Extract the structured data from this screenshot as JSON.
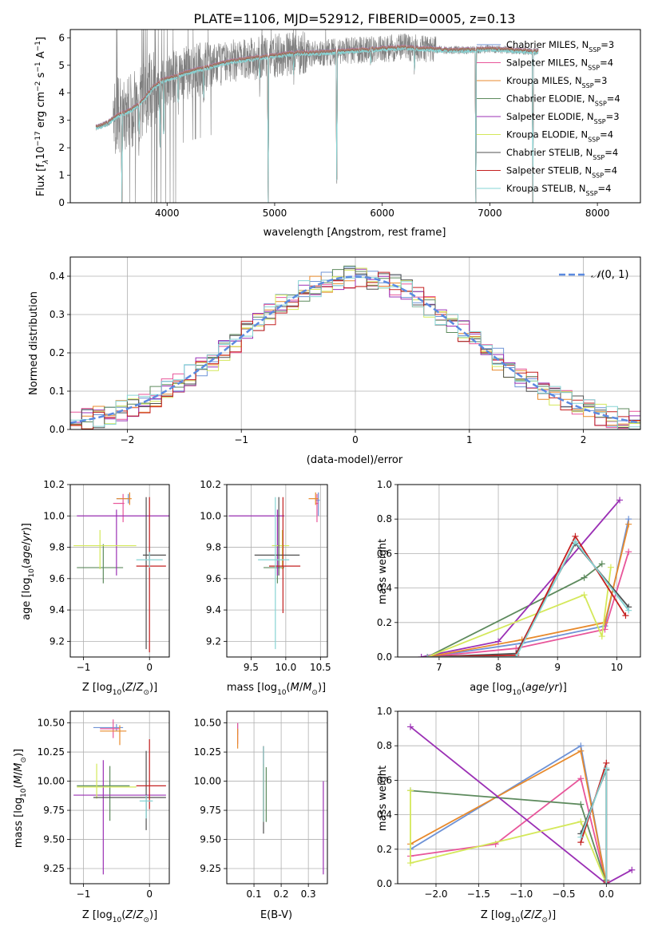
{
  "figure_title": "PLATE=1106, MJD=52912, FIBERID=0005, z=0.13",
  "legend_models": [
    {
      "label": "Chabrier MILES, N$_{SSP}$=3",
      "color": "#6f93d6"
    },
    {
      "label": "Salpeter MILES, N$_{SSP}$=4",
      "color": "#e8559a"
    },
    {
      "label": "Kroupa MILES, N$_{SSP}$=3",
      "color": "#e88a2c"
    },
    {
      "label": "Chabrier ELODIE, N$_{SSP}$=4",
      "color": "#5d8a5d"
    },
    {
      "label": "Salpeter ELODIE, N$_{SSP}$=3",
      "color": "#9b30b5"
    },
    {
      "label": "Kroupa ELODIE, N$_{SSP}$=4",
      "color": "#d4e85a"
    },
    {
      "label": "Chabrier STELIB, N$_{SSP}$=4",
      "color": "#505050"
    },
    {
      "label": "Salpeter STELIB, N$_{SSP}$=4",
      "color": "#c42020"
    },
    {
      "label": "Kroupa STELIB, N$_{SSP}$=4",
      "color": "#86d4d4"
    }
  ],
  "chart_data": [
    {
      "type": "line",
      "id": "spectrum",
      "xlabel": "wavelength [Angstrom, rest frame]",
      "ylabel": "Flux [f_λ10^{-17} erg cm^{-2} s^{-1} A^{-1}]",
      "xlim": [
        3100,
        8400
      ],
      "ylim": [
        0,
        6.3
      ],
      "xticks": [
        4000,
        5000,
        6000,
        7000,
        8000
      ],
      "yticks": [
        0,
        1,
        2,
        3,
        4,
        5,
        6
      ],
      "data_color": "#808080",
      "model_color": "#86d4d4",
      "grid": false,
      "legend_location": "upper right",
      "continuum_knots": [
        [
          3350,
          2.75
        ],
        [
          3450,
          2.9
        ],
        [
          3550,
          3.2
        ],
        [
          3650,
          3.35
        ],
        [
          3750,
          3.6
        ],
        [
          3850,
          4.1
        ],
        [
          3950,
          4.45
        ],
        [
          4050,
          4.55
        ],
        [
          4200,
          4.75
        ],
        [
          4400,
          4.95
        ],
        [
          4600,
          5.15
        ],
        [
          4800,
          5.25
        ],
        [
          5000,
          5.35
        ],
        [
          5200,
          5.45
        ],
        [
          5400,
          5.45
        ],
        [
          5600,
          5.5
        ],
        [
          5800,
          5.55
        ],
        [
          6000,
          5.6
        ],
        [
          6200,
          5.65
        ],
        [
          6400,
          5.6
        ],
        [
          6600,
          5.55
        ],
        [
          6800,
          5.55
        ],
        [
          7000,
          5.6
        ],
        [
          7200,
          5.55
        ],
        [
          7400,
          5.5
        ]
      ],
      "absorption_features": [
        [
          3580,
          0.0
        ],
        [
          3740,
          2.5
        ],
        [
          3934,
          2.0
        ],
        [
          3969,
          2.2
        ],
        [
          4102,
          3.7
        ],
        [
          4340,
          3.9
        ],
        [
          4861,
          4.4
        ],
        [
          4940,
          0.0
        ],
        [
          5176,
          4.7
        ],
        [
          5577,
          0.0
        ],
        [
          5893,
          5.0
        ],
        [
          6300,
          4.9
        ],
        [
          6870,
          0.0
        ],
        [
          7400,
          0.0
        ]
      ]
    },
    {
      "type": "line",
      "id": "residual-distribution",
      "xlabel": "(data-model)/error",
      "ylabel": "Normed distribution",
      "xlim": [
        -2.5,
        2.5
      ],
      "ylim": [
        0,
        0.45
      ],
      "xticks": [
        -2,
        -1,
        0,
        1,
        2
      ],
      "yticks": [
        0.0,
        0.1,
        0.2,
        0.3,
        0.4
      ],
      "grid": true,
      "reference_curve": {
        "name": "N(0,1)",
        "color": "#5b8ae0",
        "style": "dashed"
      },
      "histogram_bin_width": 0.1
    },
    {
      "type": "scatter",
      "id": "age-vs-Z",
      "xlabel": "Z [log10(Z/Z☉)]",
      "ylabel": "age [log10(age/yr)]",
      "xlim": [
        -1.2,
        0.3
      ],
      "ylim": [
        9.1,
        10.2
      ],
      "xticks": [
        -1,
        0
      ],
      "yticks": [
        9.2,
        9.4,
        9.6,
        9.8,
        10.0,
        10.2
      ],
      "grid": true,
      "points": [
        {
          "model": 0,
          "x": -0.32,
          "y": 10.11,
          "xerr": [
            0.18,
            0.02
          ],
          "yerr": [
            0.03,
            0.03
          ]
        },
        {
          "model": 1,
          "x": -0.4,
          "y": 10.08,
          "xerr": [
            0.15,
            0.02
          ],
          "yerr": [
            0.12,
            0.06
          ]
        },
        {
          "model": 2,
          "x": -0.3,
          "y": 10.11,
          "xerr": [
            0.2,
            0.03
          ],
          "yerr": [
            0.04,
            0.04
          ]
        },
        {
          "model": 3,
          "x": -0.7,
          "y": 9.67,
          "xerr": [
            0.4,
            0.3
          ],
          "yerr": [
            0.1,
            0.15
          ]
        },
        {
          "model": 4,
          "x": -0.5,
          "y": 10.0,
          "xerr": [
            0.6,
            0.8
          ],
          "yerr": [
            0.38,
            0.04
          ]
        },
        {
          "model": 5,
          "x": -0.75,
          "y": 9.81,
          "xerr": [
            0.4,
            0.55
          ],
          "yerr": [
            0.15,
            0.1
          ]
        },
        {
          "model": 6,
          "x": -0.05,
          "y": 9.75,
          "xerr": [
            0.05,
            0.3
          ],
          "yerr": [
            0.6,
            0.37
          ]
        },
        {
          "model": 7,
          "x": 0.0,
          "y": 9.68,
          "xerr": [
            0.2,
            0.25
          ],
          "yerr": [
            0.55,
            0.44
          ]
        },
        {
          "model": 8,
          "x": 0.0,
          "y": 9.72,
          "xerr": [
            0.2,
            0.2
          ],
          "yerr": [
            0.05,
            0.05
          ]
        }
      ]
    },
    {
      "type": "scatter",
      "id": "age-vs-mass",
      "xlabel": "mass [log10(M/M☉)]",
      "ylabel": "",
      "xlim": [
        9.15,
        10.6
      ],
      "ylim": [
        9.1,
        10.2
      ],
      "xticks": [
        9.5,
        10.0,
        10.5
      ],
      "yticks": [
        9.2,
        9.4,
        9.6,
        9.8,
        10.0,
        10.2
      ],
      "grid": true,
      "points": [
        {
          "model": 0,
          "x": 10.47,
          "y": 10.1,
          "xerr": [
            0.04,
            0.02
          ],
          "yerr": [
            0.1,
            0.05
          ]
        },
        {
          "model": 1,
          "x": 10.45,
          "y": 10.08,
          "xerr": [
            0.02,
            0.02
          ],
          "yerr": [
            0.12,
            0.06
          ]
        },
        {
          "model": 2,
          "x": 10.43,
          "y": 10.11,
          "xerr": [
            0.1,
            0.04
          ],
          "yerr": [
            0.04,
            0.04
          ]
        },
        {
          "model": 3,
          "x": 9.88,
          "y": 9.67,
          "xerr": [
            0.2,
            0.1
          ],
          "yerr": [
            0.1,
            0.15
          ]
        },
        {
          "model": 4,
          "x": 9.88,
          "y": 10.0,
          "xerr": [
            0.7,
            0.1
          ],
          "yerr": [
            0.38,
            0.04
          ]
        },
        {
          "model": 5,
          "x": 9.95,
          "y": 9.81,
          "xerr": [
            0.15,
            0.1
          ],
          "yerr": [
            0.15,
            0.1
          ]
        },
        {
          "model": 6,
          "x": 9.9,
          "y": 9.75,
          "xerr": [
            0.35,
            0.3
          ],
          "yerr": [
            0.13,
            0.37
          ]
        },
        {
          "model": 7,
          "x": 9.96,
          "y": 9.68,
          "xerr": [
            0.2,
            0.25
          ],
          "yerr": [
            0.3,
            0.44
          ]
        },
        {
          "model": 8,
          "x": 9.85,
          "y": 9.72,
          "xerr": [
            0.25,
            0.2
          ],
          "yerr": [
            0.57,
            0.4
          ]
        }
      ]
    },
    {
      "type": "line",
      "id": "mass-weight-vs-age",
      "xlabel": "age [log10(age/yr)]",
      "ylabel": "mass weight",
      "xlim": [
        6.3,
        10.4
      ],
      "ylim": [
        0,
        1.0
      ],
      "xticks": [
        7,
        8,
        9,
        10
      ],
      "yticks": [
        0.0,
        0.2,
        0.4,
        0.6,
        0.8,
        1.0
      ],
      "grid": true,
      "series": [
        {
          "model": 0,
          "x": [
            6.8,
            8.4,
            9.8,
            10.2
          ],
          "y": [
            0.0,
            0.08,
            0.18,
            0.8
          ]
        },
        {
          "model": 1,
          "x": [
            6.8,
            8.3,
            9.8,
            10.2
          ],
          "y": [
            0.0,
            0.05,
            0.16,
            0.61
          ]
        },
        {
          "model": 2,
          "x": [
            6.8,
            8.4,
            9.8,
            10.2
          ],
          "y": [
            0.0,
            0.1,
            0.2,
            0.77
          ]
        },
        {
          "model": 3,
          "x": [
            6.8,
            9.45,
            9.75
          ],
          "y": [
            0.0,
            0.46,
            0.54
          ]
        },
        {
          "model": 4,
          "x": [
            6.7,
            8.0,
            10.05
          ],
          "y": [
            0.0,
            0.09,
            0.91
          ]
        },
        {
          "model": 5,
          "x": [
            6.8,
            9.45,
            9.75,
            9.9
          ],
          "y": [
            0.0,
            0.36,
            0.12,
            0.52
          ]
        },
        {
          "model": 6,
          "x": [
            6.8,
            8.3,
            9.3,
            10.2
          ],
          "y": [
            0.0,
            0.02,
            0.66,
            0.29
          ]
        },
        {
          "model": 7,
          "x": [
            6.8,
            8.3,
            9.3,
            10.15
          ],
          "y": [
            0.0,
            0.01,
            0.7,
            0.24
          ]
        },
        {
          "model": 8,
          "x": [
            6.8,
            8.3,
            9.3,
            10.2
          ],
          "y": [
            0.0,
            0.0,
            0.67,
            0.27
          ]
        }
      ]
    },
    {
      "type": "scatter",
      "id": "mass-vs-Z",
      "xlabel": "Z [log10(Z/Z☉)]",
      "ylabel": "mass [log10(M/M☉)]",
      "xlim": [
        -1.2,
        0.3
      ],
      "ylim": [
        9.12,
        10.6
      ],
      "xticks": [
        -1,
        0
      ],
      "yticks": [
        9.25,
        9.5,
        9.75,
        10.0,
        10.25,
        10.5
      ],
      "grid": true,
      "points": [
        {
          "model": 0,
          "x": -0.5,
          "y": 10.46,
          "xerr": [
            0.35,
            0.1
          ],
          "yerr": [
            0.03,
            0.03
          ]
        },
        {
          "model": 1,
          "x": -0.55,
          "y": 10.45,
          "xerr": [
            0.2,
            0.1
          ],
          "yerr": [
            0.08,
            0.08
          ]
        },
        {
          "model": 2,
          "x": -0.45,
          "y": 10.43,
          "xerr": [
            0.3,
            0.1
          ],
          "yerr": [
            0.12,
            0.05
          ]
        },
        {
          "model": 3,
          "x": -0.6,
          "y": 9.96,
          "xerr": [
            0.5,
            0.3
          ],
          "yerr": [
            0.3,
            0.17
          ]
        },
        {
          "model": 4,
          "x": -0.7,
          "y": 9.88,
          "xerr": [
            0.45,
            0.95
          ],
          "yerr": [
            0.68,
            0.3
          ]
        },
        {
          "model": 5,
          "x": -0.8,
          "y": 9.95,
          "xerr": [
            0.3,
            0.6
          ],
          "yerr": [
            0.1,
            0.2
          ]
        },
        {
          "model": 6,
          "x": -0.05,
          "y": 9.86,
          "xerr": [
            0.8,
            0.3
          ],
          "yerr": [
            0.28,
            0.4
          ]
        },
        {
          "model": 7,
          "x": 0.0,
          "y": 9.96,
          "xerr": [
            0.2,
            0.25
          ],
          "yerr": [
            0.2,
            0.4
          ]
        },
        {
          "model": 8,
          "x": -0.05,
          "y": 9.83,
          "xerr": [
            0.1,
            0.1
          ],
          "yerr": [
            0.15,
            0.05
          ]
        }
      ]
    },
    {
      "type": "scatter",
      "id": "mass-vs-EBV",
      "xlabel": "E(B-V)",
      "ylabel": "",
      "xlim": [
        0.0,
        0.37
      ],
      "ylim": [
        9.12,
        10.6
      ],
      "xticks": [
        0.1,
        0.2,
        0.3
      ],
      "yticks": [
        9.25,
        9.5,
        9.75,
        10.0,
        10.25,
        10.5
      ],
      "grid": true,
      "points": [
        {
          "model": 0,
          "x": 0.04,
          "y": 10.45,
          "yerr": [
            0.05,
            0.05
          ]
        },
        {
          "model": 1,
          "x": 0.04,
          "y": 10.42,
          "yerr": [
            0.1,
            0.08
          ]
        },
        {
          "model": 2,
          "x": 0.04,
          "y": 10.4,
          "yerr": [
            0.12,
            0.05
          ]
        },
        {
          "model": 3,
          "x": 0.145,
          "y": 9.95,
          "yerr": [
            0.3,
            0.17
          ]
        },
        {
          "model": 4,
          "x": 0.355,
          "y": 9.6,
          "yerr": [
            0.4,
            0.4
          ]
        },
        {
          "model": 5,
          "x": 0.135,
          "y": 9.95,
          "yerr": [
            0.3,
            0.2
          ]
        },
        {
          "model": 6,
          "x": 0.135,
          "y": 9.9,
          "yerr": [
            0.35,
            0.4
          ]
        },
        {
          "model": 7,
          "x": 0.135,
          "y": 9.95,
          "yerr": [
            0.3,
            0.35
          ]
        },
        {
          "model": 8,
          "x": 0.135,
          "y": 9.95,
          "yerr": [
            0.3,
            0.35
          ]
        }
      ]
    },
    {
      "type": "line",
      "id": "mass-weight-vs-Z",
      "xlabel": "Z [log10(Z/Z☉)]",
      "ylabel": "mass weight",
      "xlim": [
        -2.45,
        0.4
      ],
      "ylim": [
        0,
        1.0
      ],
      "xticks": [
        -2.0,
        -1.5,
        -1.0,
        -0.5,
        0.0
      ],
      "yticks": [
        0.0,
        0.2,
        0.4,
        0.6,
        0.8,
        1.0
      ],
      "grid": true,
      "series": [
        {
          "model": 0,
          "x": [
            -2.3,
            -0.3,
            0.0
          ],
          "y": [
            0.2,
            0.8,
            0.0
          ]
        },
        {
          "model": 1,
          "x": [
            -2.3,
            -1.3,
            -0.3,
            0.0
          ],
          "y": [
            0.16,
            0.23,
            0.61,
            0.0
          ]
        },
        {
          "model": 2,
          "x": [
            -2.3,
            -0.3,
            0.0
          ],
          "y": [
            0.23,
            0.77,
            0.0
          ]
        },
        {
          "model": 3,
          "x": [
            -2.3,
            -0.3,
            0.0
          ],
          "y": [
            0.54,
            0.46,
            0.0
          ]
        },
        {
          "model": 4,
          "x": [
            -2.3,
            0.0,
            0.3
          ],
          "y": [
            0.91,
            0.0,
            0.08
          ]
        },
        {
          "model": 5,
          "x": [
            -2.3,
            -2.3,
            -0.3,
            0.0
          ],
          "y": [
            0.54,
            0.12,
            0.36,
            0.0
          ]
        },
        {
          "model": 6,
          "x": [
            -0.3,
            0.0,
            0.0
          ],
          "y": [
            0.29,
            0.66,
            0.02
          ]
        },
        {
          "model": 7,
          "x": [
            -0.3,
            0.0,
            0.0
          ],
          "y": [
            0.24,
            0.7,
            0.01
          ]
        },
        {
          "model": 8,
          "x": [
            -0.3,
            0.0,
            0.0
          ],
          "y": [
            0.27,
            0.67,
            0.0
          ]
        }
      ]
    }
  ]
}
